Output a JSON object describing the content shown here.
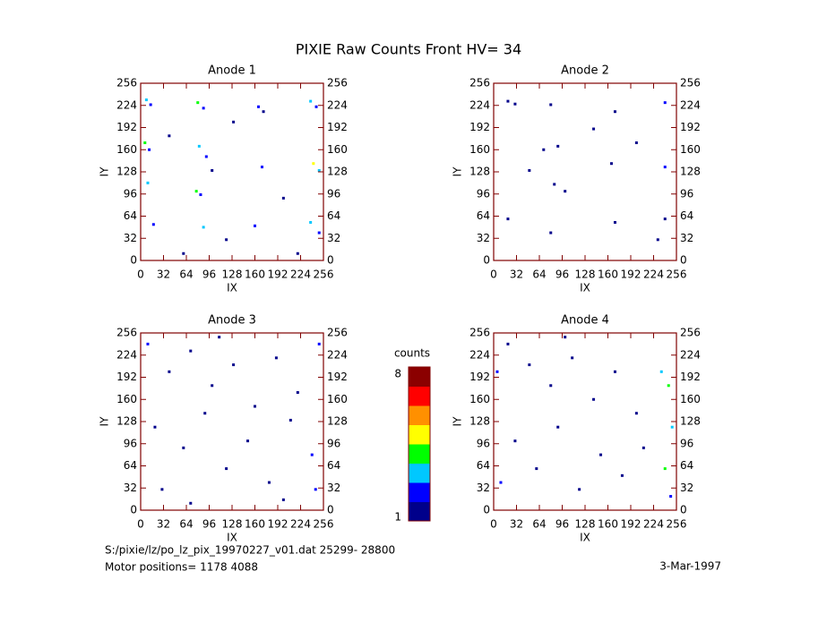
{
  "title": "PIXIE Raw Counts Front HV= 34",
  "chart_data": [
    {
      "type": "scatter",
      "title": "Anode 1",
      "x_label": "IX",
      "y_label": "IY",
      "xlim": [
        0,
        256
      ],
      "ylim": [
        0,
        256
      ],
      "xticks": [
        0,
        32,
        64,
        96,
        128,
        160,
        192,
        224,
        256
      ],
      "yticks": [
        0,
        32,
        64,
        96,
        128,
        160,
        192,
        224,
        256
      ],
      "x": [
        8,
        14,
        80,
        88,
        165,
        172,
        238,
        246,
        6,
        12,
        82,
        92,
        100,
        170,
        242,
        250,
        10,
        78,
        84,
        18,
        88,
        160,
        238,
        250,
        40,
        130,
        200,
        120,
        60,
        220
      ],
      "y": [
        232,
        225,
        228,
        220,
        222,
        215,
        230,
        222,
        170,
        160,
        165,
        150,
        130,
        135,
        140,
        130,
        112,
        100,
        95,
        52,
        48,
        50,
        55,
        40,
        180,
        200,
        90,
        30,
        10,
        10
      ],
      "values": [
        3,
        2,
        4,
        2,
        2,
        1,
        3,
        2,
        4,
        2,
        3,
        2,
        1,
        2,
        5,
        3,
        3,
        4,
        2,
        2,
        3,
        2,
        3,
        2,
        1,
        1,
        1,
        1,
        1,
        1
      ]
    },
    {
      "type": "scatter",
      "title": "Anode 2",
      "x_label": "IX",
      "y_label": "IY",
      "xlim": [
        0,
        256
      ],
      "ylim": [
        0,
        256
      ],
      "xticks": [
        0,
        32,
        64,
        96,
        128,
        160,
        192,
        224,
        256
      ],
      "yticks": [
        0,
        32,
        64,
        96,
        128,
        160,
        192,
        224,
        256
      ],
      "x": [
        20,
        30,
        80,
        170,
        240,
        70,
        90,
        165,
        240,
        85,
        100,
        20,
        80,
        170,
        240,
        230,
        140,
        50,
        200
      ],
      "y": [
        230,
        226,
        225,
        215,
        228,
        160,
        165,
        140,
        135,
        110,
        100,
        60,
        40,
        55,
        60,
        30,
        190,
        130,
        170
      ],
      "values": [
        1,
        1,
        1,
        1,
        2,
        1,
        1,
        1,
        2,
        1,
        1,
        1,
        1,
        1,
        1,
        1,
        1,
        1,
        1
      ]
    },
    {
      "type": "scatter",
      "title": "Anode 3",
      "x_label": "IX",
      "y_label": "IY",
      "xlim": [
        0,
        256
      ],
      "ylim": [
        0,
        256
      ],
      "xticks": [
        0,
        32,
        64,
        96,
        128,
        160,
        192,
        224,
        256
      ],
      "yticks": [
        0,
        32,
        64,
        96,
        128,
        160,
        192,
        224,
        256
      ],
      "x": [
        10,
        40,
        70,
        100,
        130,
        160,
        190,
        220,
        250,
        20,
        60,
        90,
        120,
        150,
        180,
        210,
        240,
        30,
        70,
        200,
        110,
        245
      ],
      "y": [
        240,
        200,
        230,
        180,
        210,
        150,
        220,
        170,
        240,
        120,
        90,
        140,
        60,
        100,
        40,
        130,
        80,
        30,
        10,
        15,
        250,
        30
      ],
      "values": [
        2,
        1,
        1,
        1,
        1,
        1,
        1,
        1,
        2,
        1,
        1,
        1,
        1,
        1,
        1,
        1,
        2,
        1,
        1,
        1,
        1,
        2
      ]
    },
    {
      "type": "scatter",
      "title": "Anode 4",
      "x_label": "IX",
      "y_label": "IY",
      "xlim": [
        0,
        256
      ],
      "ylim": [
        0,
        256
      ],
      "xticks": [
        0,
        32,
        64,
        96,
        128,
        160,
        192,
        224,
        256
      ],
      "yticks": [
        0,
        32,
        64,
        96,
        128,
        160,
        192,
        224,
        256
      ],
      "x": [
        5,
        20,
        50,
        80,
        110,
        140,
        170,
        200,
        235,
        245,
        250,
        240,
        248,
        30,
        60,
        90,
        120,
        150,
        180,
        210,
        10,
        100
      ],
      "y": [
        200,
        240,
        210,
        180,
        220,
        160,
        200,
        140,
        200,
        180,
        120,
        60,
        20,
        100,
        60,
        120,
        30,
        80,
        50,
        90,
        40,
        250
      ],
      "values": [
        2,
        1,
        1,
        1,
        1,
        1,
        1,
        1,
        3,
        4,
        3,
        4,
        2,
        1,
        1,
        1,
        1,
        1,
        1,
        1,
        2,
        1
      ]
    }
  ],
  "colorbar": {
    "label": "counts",
    "lim": [
      1,
      8
    ],
    "ticks": [
      1,
      8
    ],
    "colors": [
      "#00008b",
      "#0000ff",
      "#00c8ff",
      "#00ff00",
      "#ffff00",
      "#ff9000",
      "#ff0000",
      "#8b0000"
    ]
  },
  "footer": {
    "file": "S:/pixie/lz/po_lz_pix_19970227_v01.dat   25299- 28800",
    "motor": "Motor positions= 1178 4088",
    "date": "3-Mar-1997"
  }
}
